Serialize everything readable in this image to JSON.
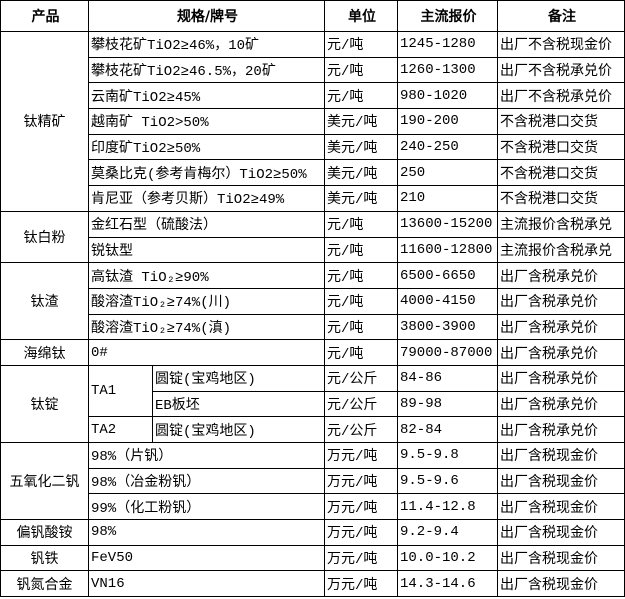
{
  "headers": {
    "product": "产品",
    "spec": "规格/牌号",
    "unit": "单位",
    "price": "主流报价",
    "note": "备注"
  },
  "groups": [
    {
      "product": "钛精矿",
      "rows": [
        {
          "spec": "攀枝花矿TiO2≥46%，10矿",
          "unit": "元/吨",
          "price": "1245-1280",
          "note": "出厂不含税现金价"
        },
        {
          "spec": "攀枝花矿TiO2≥46.5%，20矿",
          "unit": "元/吨",
          "price": "1260-1300",
          "note": "出厂不含税承兑价"
        },
        {
          "spec": "云南矿TiO2≥45%",
          "unit": "元/吨",
          "price": "980-1020",
          "note": "出厂不含税承兑价"
        },
        {
          "spec": "越南矿 TiO2>50%",
          "unit": "美元/吨",
          "price": "190-200",
          "note": "不含税港口交货"
        },
        {
          "spec": "印度矿TiO2≥50%",
          "unit": "美元/吨",
          "price": "240-250",
          "note": "不含税港口交货"
        },
        {
          "spec": "莫桑比克(参考肯梅尔）TiO2≥50%",
          "unit": "美元/吨",
          "price": "250",
          "note": "不含税港口交货"
        },
        {
          "spec": "肯尼亚（参考贝斯）TiO2≥49%",
          "unit": "美元/吨",
          "price": "210",
          "note": "不含税港口交货"
        }
      ]
    },
    {
      "product": "钛白粉",
      "rows": [
        {
          "spec": "金红石型（硫酸法）",
          "unit": "元/吨",
          "price": "13600-15200",
          "note": "主流报价含税承兑"
        },
        {
          "spec": "锐钛型",
          "unit": "元/吨",
          "price": "11600-12800",
          "note": "主流报价含税承兑"
        }
      ]
    },
    {
      "product": "钛渣",
      "rows": [
        {
          "spec": "高钛渣 TiO₂≥90%",
          "unit": "元/吨",
          "price": "6500-6650",
          "note": "出厂含税承兑价"
        },
        {
          "spec": "酸溶渣TiO₂≥74%(川)",
          "unit": "元/吨",
          "price": "4000-4150",
          "note": "出厂含税承兑价"
        },
        {
          "spec": "酸溶渣TiO₂≥74%(滇)",
          "unit": "元/吨",
          "price": "3800-3900",
          "note": "出厂含税承兑价"
        }
      ]
    },
    {
      "product": "海绵钛",
      "rows": [
        {
          "spec": "0#",
          "unit": "元/吨",
          "price": "79000-87000",
          "note": "出厂含税承兑价"
        }
      ]
    },
    {
      "product": "钛锭",
      "subgroups": [
        {
          "grade": "TA1",
          "rows": [
            {
              "spec": "圆锭(宝鸡地区)",
              "unit": "元/公斤",
              "price": "84-86",
              "note": "出厂含税承兑价"
            },
            {
              "spec": "EB板坯",
              "unit": "元/公斤",
              "price": "89-98",
              "note": "出厂含税承兑价"
            }
          ]
        },
        {
          "grade": "TA2",
          "rows": [
            {
              "spec": "圆锭(宝鸡地区)",
              "unit": "元/公斤",
              "price": "82-84",
              "note": "出厂含税承兑价"
            }
          ]
        }
      ]
    },
    {
      "product": "五氧化二钒",
      "rows": [
        {
          "spec": "98%（片钒）",
          "unit": "万元/吨",
          "price": "9.5-9.8",
          "note": "出厂含税现金价"
        },
        {
          "spec": "98%（冶金粉钒）",
          "unit": "万元/吨",
          "price": "9.5-9.6",
          "note": "出厂含税现金价"
        },
        {
          "spec": "99%（化工粉钒）",
          "unit": "万元/吨",
          "price": "11.4-12.8",
          "note": "出厂含税现金价"
        }
      ]
    },
    {
      "product": "偏钒酸铵",
      "rows": [
        {
          "spec": "98%",
          "unit": "万元/吨",
          "price": "9.2-9.4",
          "note": "出厂含税现金价"
        }
      ]
    },
    {
      "product": "钒铁",
      "rows": [
        {
          "spec": "FeV50",
          "unit": "万元/吨",
          "price": "10.0-10.2",
          "note": "出厂含税现金价"
        }
      ]
    },
    {
      "product": "钒氮合金",
      "rows": [
        {
          "spec": "VN16",
          "unit": "万元/吨",
          "price": "14.3-14.6",
          "note": "出厂含税现金价"
        }
      ]
    }
  ]
}
